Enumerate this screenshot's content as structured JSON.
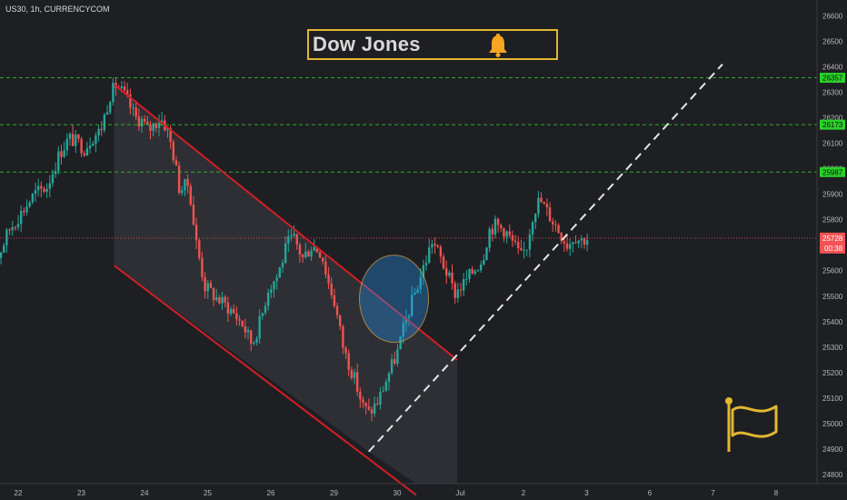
{
  "header": {
    "ticker": "US30, 1h, CURRENCYCOM"
  },
  "title_box": {
    "text": "Dow Jones",
    "icon": "bell-icon"
  },
  "flag_icon": "flag-icon",
  "colors": {
    "background": "#1e1f23",
    "bull": "#26a69a",
    "bear": "#ef5350",
    "channel": "#d01f26",
    "levels": "#2bd12b",
    "current": "#f05454",
    "accent": "#e2b731"
  },
  "chart_data": {
    "type": "candlestick",
    "x_ticks": [
      "22",
      "23",
      "24",
      "25",
      "26",
      "29",
      "30",
      "Jul",
      "2",
      "3",
      "6",
      "7",
      "8"
    ],
    "y_ticks": [
      "24800",
      "24900",
      "25000",
      "25100",
      "25200",
      "25300",
      "25400",
      "25500",
      "25600",
      "25700",
      "25800",
      "25900",
      "26000",
      "26100",
      "26200",
      "26300",
      "26400",
      "26500",
      "26600"
    ],
    "ylim": [
      24750,
      26600
    ],
    "levels": [
      {
        "label": "26357",
        "value": 26357
      },
      {
        "label": "26173",
        "value": 26173
      },
      {
        "label": "25987",
        "value": 25987
      }
    ],
    "current_price": {
      "label": "25728",
      "value": 25728,
      "countdown": "00:38"
    },
    "price_path": [
      [
        -0.5,
        25580
      ],
      [
        -0.3,
        25640
      ],
      [
        -0.1,
        25760
      ],
      [
        0.1,
        25830
      ],
      [
        0.3,
        25900
      ],
      [
        0.5,
        25930
      ],
      [
        0.7,
        26060
      ],
      [
        0.85,
        26120
      ],
      [
        1.0,
        26100
      ],
      [
        1.1,
        26080
      ],
      [
        1.2,
        26120
      ],
      [
        1.35,
        26150
      ],
      [
        1.5,
        26290
      ],
      [
        1.6,
        26330
      ],
      [
        1.75,
        26280
      ],
      [
        1.9,
        26200
      ],
      [
        2.0,
        26190
      ],
      [
        2.1,
        26150
      ],
      [
        2.3,
        26200
      ],
      [
        2.4,
        26160
      ],
      [
        2.5,
        26060
      ],
      [
        2.6,
        25920
      ],
      [
        2.75,
        25940
      ],
      [
        2.85,
        25730
      ],
      [
        3.0,
        25540
      ],
      [
        3.2,
        25490
      ],
      [
        3.4,
        25450
      ],
      [
        3.6,
        25390
      ],
      [
        3.75,
        25310
      ],
      [
        3.9,
        25420
      ],
      [
        4.0,
        25530
      ],
      [
        4.15,
        25580
      ],
      [
        4.3,
        25700
      ],
      [
        4.4,
        25730
      ],
      [
        4.55,
        25650
      ],
      [
        4.7,
        25700
      ],
      [
        4.85,
        25670
      ],
      [
        4.95,
        25560
      ],
      [
        5.05,
        25480
      ],
      [
        5.2,
        25290
      ],
      [
        5.35,
        25190
      ],
      [
        5.5,
        25070
      ],
      [
        5.6,
        25040
      ],
      [
        5.75,
        25090
      ],
      [
        5.9,
        25190
      ],
      [
        6.05,
        25280
      ],
      [
        6.2,
        25420
      ],
      [
        6.35,
        25530
      ],
      [
        6.5,
        25640
      ],
      [
        6.6,
        25720
      ],
      [
        6.75,
        25640
      ],
      [
        6.85,
        25580
      ],
      [
        6.95,
        25510
      ],
      [
        7.1,
        25550
      ],
      [
        7.25,
        25600
      ],
      [
        7.4,
        25650
      ],
      [
        7.5,
        25760
      ],
      [
        7.6,
        25780
      ],
      [
        7.75,
        25760
      ],
      [
        7.9,
        25700
      ],
      [
        8.0,
        25650
      ],
      [
        8.1,
        25700
      ],
      [
        8.2,
        25830
      ],
      [
        8.3,
        25880
      ],
      [
        8.45,
        25820
      ],
      [
        8.6,
        25760
      ],
      [
        8.75,
        25700
      ],
      [
        8.85,
        25740
      ],
      [
        8.95,
        25720
      ],
      [
        9.05,
        25728
      ]
    ],
    "channel": {
      "upper": [
        [
          1.52,
          26330
        ],
        [
          6.95,
          25250
        ]
      ],
      "lower": [
        [
          1.52,
          25620
        ],
        [
          5.55,
          24890
        ],
        [
          6.3,
          24720
        ]
      ],
      "shade_end_x": 6.95
    },
    "trendline": [
      [
        5.55,
        24890
      ],
      [
        11.15,
        26410
      ]
    ],
    "highlight": {
      "x": 5.95,
      "y": 25490
    },
    "annotations": [
      {
        "type": "text",
        "text": "Dow Jones"
      },
      {
        "type": "icon",
        "name": "bell-icon"
      },
      {
        "type": "icon",
        "name": "flag-icon"
      }
    ]
  }
}
